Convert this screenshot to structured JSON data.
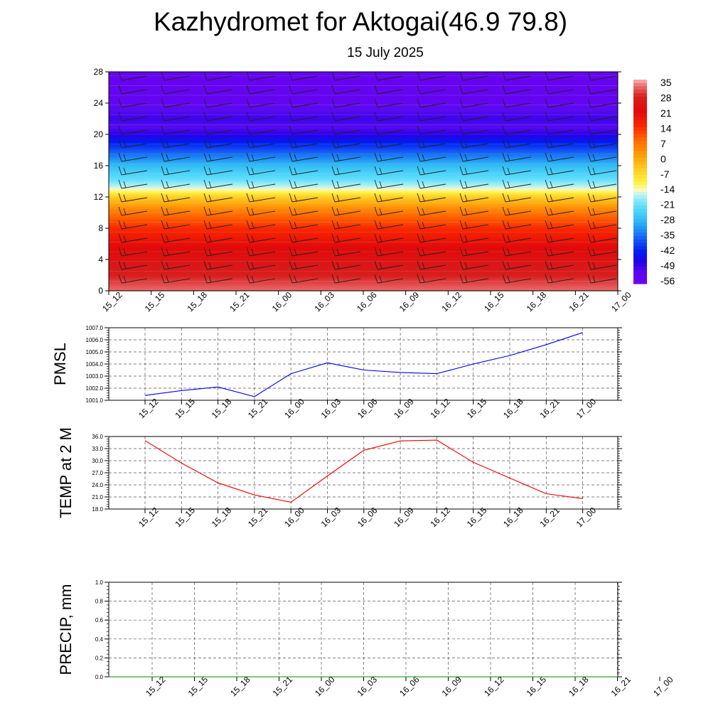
{
  "title": "Kazhydromet for Aktogai(46.9 79.8)",
  "subtitle": "15 July 2025",
  "time_labels": [
    "15_12",
    "15_15",
    "15_18",
    "15_21",
    "16_00",
    "16_03",
    "16_06",
    "16_09",
    "16_12",
    "16_15",
    "16_18",
    "16_21",
    "17_00"
  ],
  "chart_data": [
    {
      "type": "heatmap",
      "name": "temperature-cross-section",
      "x": [
        "15_12",
        "15_15",
        "15_18",
        "15_21",
        "16_00",
        "16_03",
        "16_06",
        "16_09",
        "16_12",
        "16_15",
        "16_18",
        "16_21",
        "17_00"
      ],
      "ylim": [
        0,
        28
      ],
      "yticks": [
        0,
        4,
        8,
        12,
        16,
        20,
        24,
        28
      ],
      "colorbar_labels": [
        "35",
        "28",
        "21",
        "14",
        "7",
        "0",
        "-7",
        "-14",
        "-21",
        "-28",
        "-35",
        "-42",
        "-49",
        "-56"
      ],
      "colorbar_range": [
        -60,
        36
      ],
      "profile_levels": [
        0,
        2,
        4,
        6,
        8,
        10,
        12,
        13,
        14,
        16,
        18,
        20,
        21,
        22,
        24,
        26,
        28
      ],
      "profile_values": [
        33,
        28,
        24,
        20,
        14,
        6,
        -6,
        -16,
        -22,
        -30,
        -40,
        -50,
        -55,
        -52,
        -57,
        -58,
        -58
      ],
      "wind_barbs": true
    },
    {
      "type": "line",
      "ylabel": "PMSL",
      "categories": [
        "15_12",
        "15_15",
        "15_18",
        "15_21",
        "16_00",
        "16_03",
        "16_06",
        "16_09",
        "16_12",
        "16_15",
        "16_18",
        "16_21",
        "17_00"
      ],
      "series": [
        {
          "color": "#0000ee",
          "values": [
            1001.4,
            1001.8,
            1002.1,
            1001.3,
            1003.2,
            1004.1,
            1003.5,
            1003.3,
            1003.2,
            1004.0,
            1004.7,
            1005.6,
            1006.6
          ]
        }
      ],
      "ylim": [
        1001.0,
        1007.0
      ],
      "yticks": [
        "1001.0",
        "1002.0",
        "1003.0",
        "1004.0",
        "1005.0",
        "1006.0",
        "1007.0"
      ],
      "grid": true
    },
    {
      "type": "line",
      "ylabel": "TEMP at 2 M",
      "categories": [
        "15_12",
        "15_15",
        "15_18",
        "15_21",
        "16_00",
        "16_03",
        "16_06",
        "16_09",
        "16_12",
        "16_15",
        "16_18",
        "16_21",
        "17_00"
      ],
      "series": [
        {
          "color": "#ee0000",
          "values": [
            35.0,
            29.4,
            24.5,
            21.5,
            19.7,
            26.2,
            32.6,
            34.9,
            35.1,
            29.6,
            25.7,
            21.8,
            20.6
          ]
        }
      ],
      "ylim": [
        18.0,
        36.0
      ],
      "yticks": [
        "18.0",
        "21.0",
        "24.0",
        "27.0",
        "30.0",
        "33.0",
        "36.0"
      ],
      "grid": true
    },
    {
      "type": "line",
      "ylabel": "PRECIP, mm",
      "categories": [
        "15_12",
        "15_15",
        "15_18",
        "15_21",
        "16_00",
        "16_03",
        "16_06",
        "16_09",
        "16_12",
        "16_15",
        "16_18",
        "16_21",
        "17_00"
      ],
      "series": [
        {
          "color": "#008800",
          "values": [
            0,
            0,
            0,
            0,
            0,
            0,
            0,
            0,
            0,
            0,
            0,
            0,
            0
          ]
        }
      ],
      "ylim": [
        0.0,
        1.0
      ],
      "yticks": [
        "0.0",
        "0.2",
        "0.4",
        "0.6",
        "0.8",
        "1.0"
      ],
      "grid": true
    }
  ]
}
